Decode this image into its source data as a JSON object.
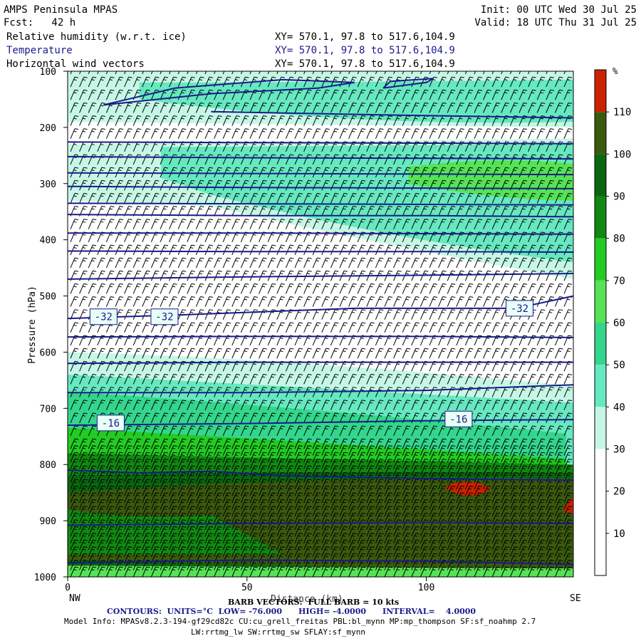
{
  "header": {
    "model": "AMPS Peninsula MPAS",
    "fcst": "Fcst:   42 h",
    "init": "Init: 00 UTC Wed 30 Jul 25",
    "valid": "Valid: 18 UTC Thu 31 Jul 25",
    "fields": [
      {
        "name": "Relative humidity (w.r.t. ice)",
        "xy": "XY= 570.1, 97.8 to 517.6,104.9"
      },
      {
        "name": "Temperature",
        "xy": "XY= 570.1, 97.8 to 517.6,104.9"
      },
      {
        "name": "Horizontal wind vectors",
        "xy": "XY= 570.1, 97.8 to 517.6,104.9"
      }
    ]
  },
  "colors": {
    "contour": "#1a1a8c",
    "rh_levels": [
      "#ffffff",
      "#ffffff",
      "#ffffff",
      "#c6f7e6",
      "#66e8c0",
      "#33d68c",
      "#55e355",
      "#22cc22",
      "#118811",
      "#0b6610",
      "#3a5a0e",
      "#cc2200"
    ]
  },
  "chart_data": {
    "type": "heatmap",
    "xlabel": "Distance (km)",
    "ylabel": "Pressure (hPa)",
    "xlim": [
      0,
      141
    ],
    "ylim": [
      1000,
      100
    ],
    "x_ticks": [
      0,
      50,
      100
    ],
    "y_ticks": [
      100,
      200,
      300,
      400,
      500,
      600,
      700,
      800,
      900,
      1000
    ],
    "x_end_labels": {
      "left": "NW",
      "right": "SE"
    },
    "colorbar": {
      "unit": "%",
      "levels": [
        10,
        20,
        30,
        40,
        50,
        60,
        70,
        80,
        90,
        100,
        110
      ],
      "labels": [
        "110",
        "100",
        "90",
        "80",
        "70",
        "60",
        "50",
        "40",
        "30",
        "20",
        "10"
      ]
    },
    "temperature_contours": {
      "units": "°C",
      "low": -76.0,
      "high": -4.0,
      "interval": 4.0,
      "labeled": [
        {
          "value": "-32",
          "x": 10,
          "p": 537
        },
        {
          "value": "-32",
          "x": 27,
          "p": 537
        },
        {
          "value": "-32",
          "x": 126,
          "p": 522
        },
        {
          "value": "-16",
          "x": 12,
          "p": 726
        },
        {
          "value": "-16",
          "x": 109,
          "p": 719
        }
      ]
    }
  },
  "footer": {
    "barb": "BARB VECTORS:  FULL BARB = 10 kts",
    "contours": "CONTOURS:  UNITS=°C  LOW= -76.000      HIGH= -4.0000      INTERVAL=    4.0000",
    "model_info": "Model Info: MPASv8.2.3-194-gf29cd82c CU:cu_grell_freitas PBL:bl_mynn MP:mp_thompson SF:sf_noahmp 2.7",
    "model_info2": "LW:rrtmg_lw SW:rrtmg_sw SFLAY:sf_mynn"
  }
}
